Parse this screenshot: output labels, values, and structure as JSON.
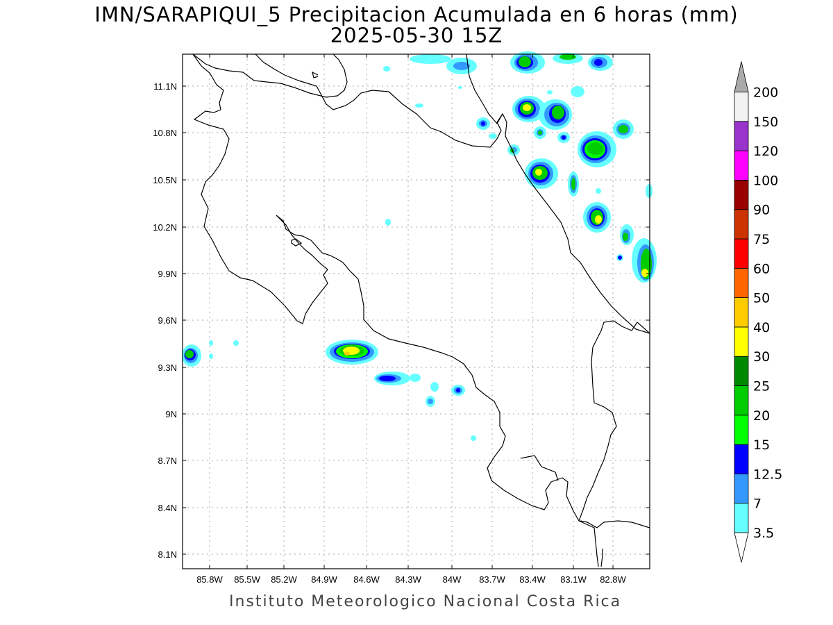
{
  "title": "IMN/SARAPIQUI_5 Precipitacion Acumulada en 6 horas (mm)",
  "subtitle": "2025-05-30 15Z",
  "footer": "Instituto Meteorologico Nacional Costa Rica",
  "map": {
    "lon_range": [
      -86.03,
      -83.03
    ],
    "lat_range": [
      8.02,
      11.32
    ],
    "lat_ticks": [
      "11.1N",
      "10.8N",
      "10.5N",
      "10.2N",
      "9.9N",
      "9.6N",
      "9.3N",
      "9N",
      "8.7N",
      "8.4N",
      "8.1N"
    ],
    "lon_ticks": [
      "85.8W",
      "85.5W",
      "85.2W",
      "84.9W",
      "84.6W",
      "84.3W",
      "84W",
      "83.7W",
      "83.4W",
      "83.1W",
      "82.8W"
    ],
    "gridlines": true
  },
  "colorbar": {
    "levels": [
      "3.5",
      "7",
      "12.5",
      "15",
      "20",
      "25",
      "30",
      "40",
      "50",
      "60",
      "75",
      "90",
      "100",
      "120",
      "150",
      "200"
    ],
    "colors": [
      "#66ffff",
      "#3399ff",
      "#0000ff",
      "#00ff00",
      "#00cc00",
      "#008800",
      "#ffff00",
      "#ffcc00",
      "#ff6600",
      "#ff0000",
      "#cc3300",
      "#990000",
      "#ff00ff",
      "#9933cc",
      "#f2f2f2",
      "#aaaaaa"
    ]
  }
}
